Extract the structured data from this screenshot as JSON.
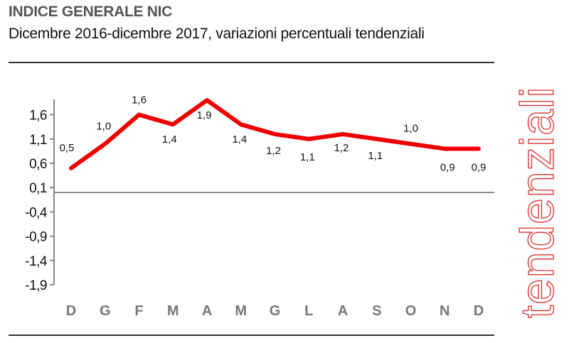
{
  "header": {
    "title": "INDICE GENERALE NIC",
    "subtitle": "Dicembre 2016-dicembre 2017, variazioni percentuali tendenziali"
  },
  "side_label": "tendenziali",
  "chart_data": {
    "type": "line",
    "categories": [
      "D",
      "G",
      "F",
      "M",
      "A",
      "M",
      "G",
      "L",
      "A",
      "S",
      "O",
      "N",
      "D"
    ],
    "values": [
      0.5,
      1.0,
      1.6,
      1.4,
      1.9,
      1.4,
      1.2,
      1.1,
      1.2,
      1.1,
      1.0,
      0.9,
      0.9
    ],
    "data_labels": [
      "0,5",
      "1,0",
      "1,6",
      "1,4",
      "1,9",
      "1,4",
      "1,2",
      "1,1",
      "1,2",
      "1,1",
      "1,0",
      "0,9",
      "0,9"
    ],
    "y_ticks": [
      1.6,
      1.1,
      0.6,
      0.1,
      -0.4,
      -0.9,
      -1.4,
      -1.9
    ],
    "y_tick_labels": [
      "1,6",
      "1,1",
      "0,6",
      "0,1",
      "-0,4",
      "-0,9",
      "-1,4",
      "-1,9"
    ],
    "ylim": [
      -1.9,
      1.9
    ],
    "zero_line": true,
    "grid": false,
    "line_color": "#ee0000",
    "title": "INDICE GENERALE NIC",
    "xlabel": "",
    "ylabel": ""
  }
}
